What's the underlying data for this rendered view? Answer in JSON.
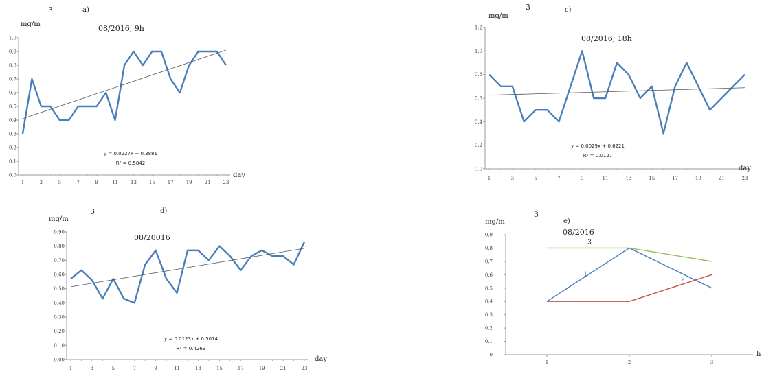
{
  "chart_data": [
    {
      "id": "a",
      "type": "line",
      "panel_label": "a)",
      "title": "08/2016, 9h",
      "ylabel": "mg/m",
      "ylabel_superscript": "3",
      "xlabel": "day",
      "ylim": [
        0,
        1.0
      ],
      "yticks": [
        0.0,
        0.1,
        0.2,
        0.3,
        0.4,
        0.5,
        0.6,
        0.7,
        0.8,
        0.9,
        1.0
      ],
      "ytick_labels": [
        "0.0",
        "0.1",
        "0.2",
        "0.3",
        "0.4",
        "0.5",
        "0.6",
        "0.7",
        "0.8",
        "0.9",
        "1.0"
      ],
      "xlim": [
        1,
        23
      ],
      "xtick_labels": [
        "1",
        "3",
        "5",
        "7",
        "9",
        "11",
        "13",
        "15",
        "17",
        "19",
        "21",
        "23"
      ],
      "x": [
        1,
        2,
        3,
        4,
        5,
        6,
        7,
        8,
        9,
        10,
        11,
        12,
        13,
        14,
        15,
        16,
        17,
        18,
        19,
        20,
        21,
        22,
        23
      ],
      "values": [
        0.3,
        0.7,
        0.5,
        0.5,
        0.4,
        0.4,
        0.5,
        0.5,
        0.5,
        0.6,
        0.4,
        0.8,
        0.9,
        0.8,
        0.9,
        0.9,
        0.7,
        0.6,
        0.8,
        0.9,
        0.9,
        0.9,
        0.8
      ],
      "trend": {
        "slope": 0.0227,
        "intercept": 0.3881
      },
      "equation": "y = 0.0227x + 0.3881",
      "r2": "R² = 0.5842",
      "grid": false
    },
    {
      "id": "c",
      "type": "line",
      "panel_label": "c)",
      "title": "08/2016, 18h",
      "ylabel": "mg/m",
      "ylabel_superscript": "3",
      "xlabel": "day",
      "ylim": [
        0,
        1.2
      ],
      "yticks": [
        0.0,
        0.2,
        0.4,
        0.6,
        0.8,
        1.0,
        1.2
      ],
      "ytick_labels": [
        "0.0",
        "0.2",
        "0.4",
        "0.6",
        "0.8",
        "1.0",
        "1.2"
      ],
      "xlim": [
        1,
        23
      ],
      "xtick_labels": [
        "1",
        "3",
        "5",
        "7",
        "9",
        "11",
        "13",
        "15",
        "17",
        "19",
        "21",
        "23"
      ],
      "x": [
        1,
        2,
        3,
        4,
        5,
        6,
        7,
        8,
        9,
        10,
        11,
        12,
        13,
        14,
        15,
        16,
        17,
        18,
        19,
        20,
        21,
        22,
        23
      ],
      "values": [
        0.8,
        0.7,
        0.7,
        0.4,
        0.5,
        0.5,
        0.4,
        0.7,
        1.0,
        0.6,
        0.6,
        0.9,
        0.8,
        0.6,
        0.7,
        0.3,
        0.7,
        0.9,
        0.7,
        0.5,
        0.6,
        0.7,
        0.8
      ],
      "trend": {
        "slope": 0.0029,
        "intercept": 0.6221
      },
      "equation": "y = 0.0029x + 0.6221",
      "r2": "R² = 0.0127",
      "grid": false
    },
    {
      "id": "d",
      "type": "line",
      "panel_label": "d)",
      "title": "08/20016",
      "ylabel": "mg/m",
      "ylabel_superscript": "3",
      "xlabel": "day",
      "ylim": [
        0,
        0.9
      ],
      "yticks": [
        0.0,
        0.1,
        0.2,
        0.3,
        0.4,
        0.5,
        0.6,
        0.7,
        0.8,
        0.9
      ],
      "ytick_labels": [
        "0.00",
        "0.10",
        "0.20",
        "0.30",
        "0.40",
        "0.50",
        "0.60",
        "0.70",
        "0.80",
        "0.90"
      ],
      "xlim": [
        1,
        23
      ],
      "xtick_labels": [
        "1",
        "3",
        "5",
        "7",
        "9",
        "11",
        "13",
        "15",
        "17",
        "19",
        "21",
        "23"
      ],
      "x": [
        1,
        2,
        3,
        4,
        5,
        6,
        7,
        8,
        9,
        10,
        11,
        12,
        13,
        14,
        15,
        16,
        17,
        18,
        19,
        20,
        21,
        22,
        23
      ],
      "values": [
        0.57,
        0.63,
        0.56,
        0.43,
        0.57,
        0.43,
        0.4,
        0.67,
        0.77,
        0.57,
        0.47,
        0.77,
        0.77,
        0.7,
        0.8,
        0.73,
        0.63,
        0.73,
        0.77,
        0.73,
        0.73,
        0.67,
        0.83
      ],
      "trend": {
        "slope": 0.0123,
        "intercept": 0.5014
      },
      "equation": "y = 0.0123x + 0.5014",
      "r2": "R² = 0.4269",
      "grid": false
    },
    {
      "id": "e",
      "type": "line",
      "panel_label": "e)",
      "title": "08/2016",
      "ylabel": "mg/m",
      "ylabel_superscript": "3",
      "xlabel": "h",
      "ylim": [
        0,
        0.9
      ],
      "yticks": [
        0.0,
        0.1,
        0.2,
        0.3,
        0.4,
        0.5,
        0.6,
        0.7,
        0.8,
        0.9
      ],
      "ytick_labels": [
        "0",
        "0.1",
        "0.2",
        "0.3",
        "0.4",
        "0.5",
        "0.6",
        "0.7",
        "0.8",
        "0.9"
      ],
      "categories": [
        "1",
        "2",
        "3"
      ],
      "series": [
        {
          "name": "1",
          "values": [
            0.4,
            0.8,
            0.5
          ],
          "color": "#4a7ebb"
        },
        {
          "name": "2",
          "values": [
            0.4,
            0.4,
            0.6
          ],
          "color": "#c0504d"
        },
        {
          "name": "3",
          "values": [
            0.8,
            0.8,
            0.7
          ],
          "color": "#9bbb59"
        }
      ],
      "grid": false
    }
  ],
  "colors": {
    "series_line": "#4a7ebb",
    "trend_line": "#555555",
    "axis": "#9a9a9a"
  }
}
